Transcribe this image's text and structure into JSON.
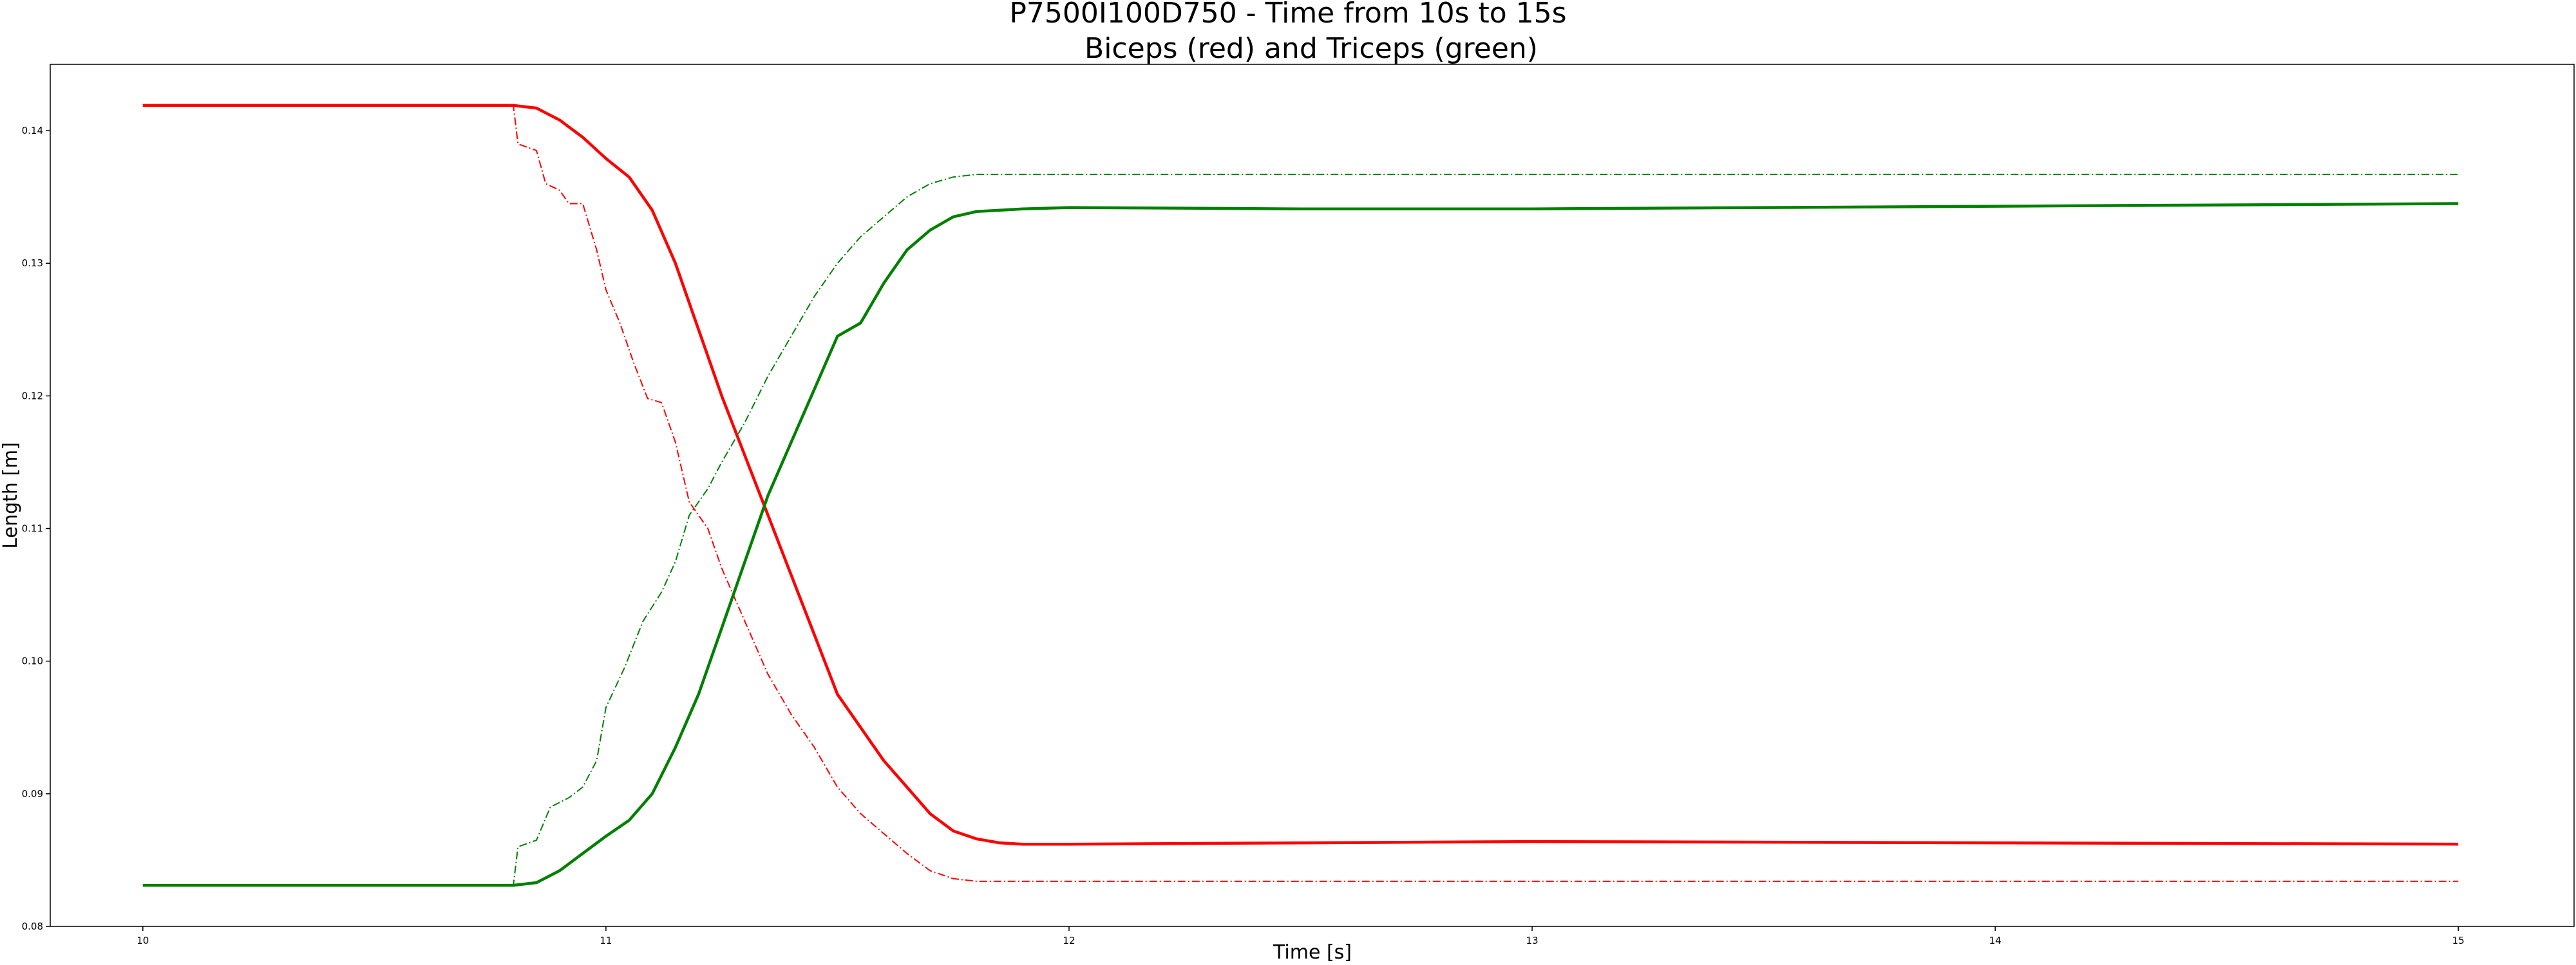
{
  "chart_data": {
    "type": "line",
    "title": "P7500I100D750 - Time from 10s to 15s",
    "subtitle": "Biceps (red) and Triceps (green)",
    "xlabel": "Time [s]",
    "ylabel": "Length [m]",
    "xlim": [
      9.8,
      15.25
    ],
    "ylim": [
      0.08,
      0.145
    ],
    "xticks": [
      "10",
      "11",
      "12",
      "13",
      "14",
      "15"
    ],
    "yticks": [
      "0.08",
      "0.09",
      "0.10",
      "0.11",
      "0.12",
      "0.13",
      "0.14"
    ],
    "grid": false,
    "series": [
      {
        "color": "#ff0000",
        "style": "solid",
        "points": [
          [
            10.0,
            0.1419
          ],
          [
            10.8,
            0.1419
          ],
          [
            10.85,
            0.1417
          ],
          [
            10.9,
            0.1408
          ],
          [
            10.95,
            0.1395
          ],
          [
            11.0,
            0.1379
          ],
          [
            11.05,
            0.1365
          ],
          [
            11.1,
            0.134
          ],
          [
            11.15,
            0.13
          ],
          [
            11.2,
            0.125
          ],
          [
            11.25,
            0.12
          ],
          [
            11.3,
            0.1155
          ],
          [
            11.35,
            0.111
          ],
          [
            11.4,
            0.1065
          ],
          [
            11.45,
            0.102
          ],
          [
            11.5,
            0.0975
          ],
          [
            11.55,
            0.095
          ],
          [
            11.6,
            0.0925
          ],
          [
            11.65,
            0.0905
          ],
          [
            11.7,
            0.0885
          ],
          [
            11.75,
            0.0872
          ],
          [
            11.8,
            0.0866
          ],
          [
            11.85,
            0.0863
          ],
          [
            11.9,
            0.0862
          ],
          [
            12.0,
            0.0862
          ],
          [
            13.0,
            0.0864
          ],
          [
            14.0,
            0.0863
          ],
          [
            15.0,
            0.0862
          ]
        ]
      },
      {
        "color": "#ff0000",
        "style": "dashdot",
        "points": [
          [
            10.0,
            0.1419
          ],
          [
            10.8,
            0.1419
          ],
          [
            10.81,
            0.139
          ],
          [
            10.85,
            0.1385
          ],
          [
            10.87,
            0.136
          ],
          [
            10.9,
            0.1355
          ],
          [
            10.92,
            0.1345
          ],
          [
            10.95,
            0.1345
          ],
          [
            10.98,
            0.131
          ],
          [
            11.0,
            0.128
          ],
          [
            11.03,
            0.1255
          ],
          [
            11.06,
            0.1225
          ],
          [
            11.09,
            0.1198
          ],
          [
            11.12,
            0.1195
          ],
          [
            11.15,
            0.1165
          ],
          [
            11.18,
            0.112
          ],
          [
            11.22,
            0.11
          ],
          [
            11.25,
            0.107
          ],
          [
            11.3,
            0.103
          ],
          [
            11.35,
            0.099
          ],
          [
            11.4,
            0.096
          ],
          [
            11.45,
            0.0935
          ],
          [
            11.5,
            0.0905
          ],
          [
            11.55,
            0.0885
          ],
          [
            11.6,
            0.087
          ],
          [
            11.65,
            0.0855
          ],
          [
            11.7,
            0.0842
          ],
          [
            11.75,
            0.0836
          ],
          [
            11.8,
            0.0834
          ],
          [
            11.9,
            0.0834
          ],
          [
            12.0,
            0.0834
          ],
          [
            15.0,
            0.0834
          ]
        ]
      },
      {
        "color": "#008000",
        "style": "solid",
        "points": [
          [
            10.0,
            0.0831
          ],
          [
            10.8,
            0.0831
          ],
          [
            10.85,
            0.0833
          ],
          [
            10.9,
            0.0842
          ],
          [
            10.95,
            0.0855
          ],
          [
            11.0,
            0.0868
          ],
          [
            11.05,
            0.088
          ],
          [
            11.1,
            0.09
          ],
          [
            11.15,
            0.0935
          ],
          [
            11.2,
            0.0975
          ],
          [
            11.25,
            0.1025
          ],
          [
            11.3,
            0.1075
          ],
          [
            11.35,
            0.1125
          ],
          [
            11.4,
            0.1165
          ],
          [
            11.45,
            0.1205
          ],
          [
            11.5,
            0.1245
          ],
          [
            11.55,
            0.1255
          ],
          [
            11.6,
            0.1285
          ],
          [
            11.65,
            0.131
          ],
          [
            11.7,
            0.1325
          ],
          [
            11.75,
            0.1335
          ],
          [
            11.8,
            0.1339
          ],
          [
            11.9,
            0.1341
          ],
          [
            12.0,
            0.1342
          ],
          [
            12.5,
            0.1341
          ],
          [
            13.0,
            0.1341
          ],
          [
            14.0,
            0.1343
          ],
          [
            15.0,
            0.1345
          ]
        ]
      },
      {
        "color": "#008000",
        "style": "dashdot",
        "points": [
          [
            10.0,
            0.0831
          ],
          [
            10.8,
            0.0831
          ],
          [
            10.81,
            0.086
          ],
          [
            10.85,
            0.0865
          ],
          [
            10.88,
            0.089
          ],
          [
            10.92,
            0.0897
          ],
          [
            10.95,
            0.0905
          ],
          [
            10.98,
            0.0925
          ],
          [
            11.0,
            0.0965
          ],
          [
            11.04,
            0.0995
          ],
          [
            11.08,
            0.103
          ],
          [
            11.12,
            0.1052
          ],
          [
            11.15,
            0.1075
          ],
          [
            11.18,
            0.111
          ],
          [
            11.22,
            0.113
          ],
          [
            11.25,
            0.115
          ],
          [
            11.3,
            0.118
          ],
          [
            11.35,
            0.1215
          ],
          [
            11.4,
            0.1245
          ],
          [
            11.45,
            0.1275
          ],
          [
            11.5,
            0.13
          ],
          [
            11.55,
            0.132
          ],
          [
            11.6,
            0.1335
          ],
          [
            11.65,
            0.135
          ],
          [
            11.7,
            0.136
          ],
          [
            11.75,
            0.1365
          ],
          [
            11.8,
            0.1367
          ],
          [
            12.0,
            0.1367
          ],
          [
            15.0,
            0.1367
          ]
        ]
      }
    ]
  }
}
